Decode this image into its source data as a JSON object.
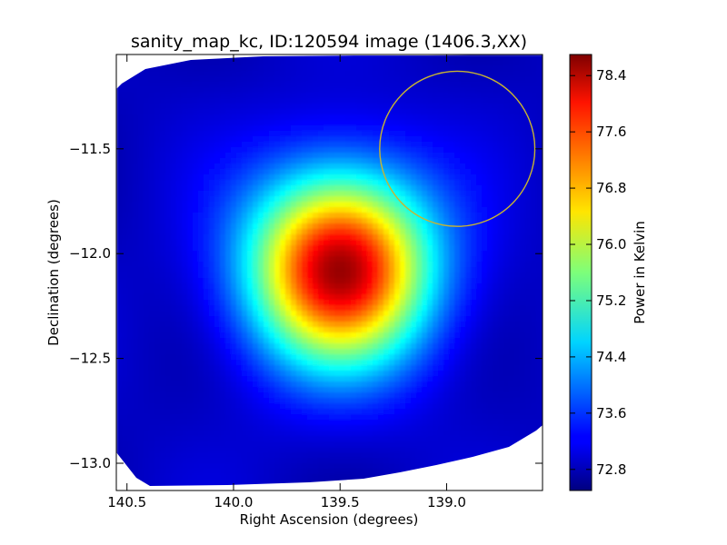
{
  "chart_data": {
    "type": "heatmap",
    "title": "sanity_map_kc, ID:120594 image (1406.3,XX)",
    "xlabel": "Right Ascension (degrees)",
    "ylabel": "Declination (degrees)",
    "xlim": [
      140.55,
      138.55
    ],
    "ylim": [
      -13.13,
      -11.05
    ],
    "xticks": [
      {
        "value": 140.5,
        "label": "140.5"
      },
      {
        "value": 140.0,
        "label": "140.0"
      },
      {
        "value": 139.5,
        "label": "139.5"
      },
      {
        "value": 139.0,
        "label": "139.0"
      }
    ],
    "yticks": [
      {
        "value": -11.5,
        "label": "−11.5"
      },
      {
        "value": -12.0,
        "label": "−12.0"
      },
      {
        "value": -12.5,
        "label": "−12.5"
      },
      {
        "value": -13.0,
        "label": "−13.0"
      }
    ],
    "colorbar": {
      "label": "Power in Kelvin",
      "range": [
        72.5,
        78.7
      ],
      "ticks": [
        {
          "value": 72.8,
          "label": "72.8"
        },
        {
          "value": 73.6,
          "label": "73.6"
        },
        {
          "value": 74.4,
          "label": "74.4"
        },
        {
          "value": 75.2,
          "label": "75.2"
        },
        {
          "value": 76.0,
          "label": "76.0"
        },
        {
          "value": 76.8,
          "label": "76.8"
        },
        {
          "value": 77.6,
          "label": "77.6"
        },
        {
          "value": 78.4,
          "label": "78.4"
        }
      ],
      "colormap": "jet"
    },
    "source": {
      "ra": 139.5,
      "dec": -12.07,
      "peak": 78.5,
      "background": 72.9
    },
    "circle": {
      "center_ra": 138.95,
      "center_dec": -11.5,
      "radius_deg": 0.37,
      "color": "#c8b432"
    },
    "grid": false
  }
}
